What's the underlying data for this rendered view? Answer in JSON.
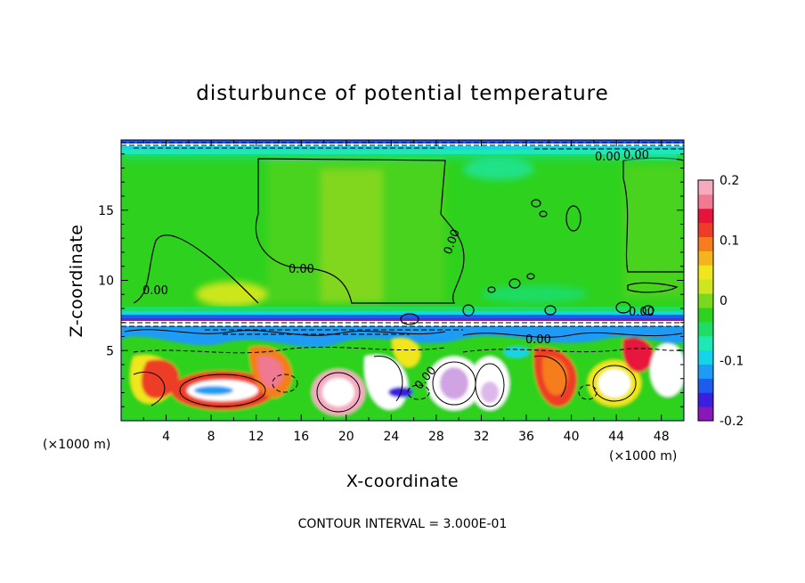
{
  "chart_data": {
    "type": "heatmap",
    "title": "disturbunce of potential temperature",
    "xlabel": "X-coordinate",
    "ylabel": "Z-coordinate",
    "x_unit": "(×1000 m)",
    "x_unit_right": "(×1000 m)",
    "x_ticks": [
      "4",
      "8",
      "12",
      "16",
      "20",
      "24",
      "28",
      "32",
      "36",
      "40",
      "44",
      "48"
    ],
    "y_ticks": [
      "5",
      "10",
      "15"
    ],
    "xlim": [
      0,
      50
    ],
    "ylim": [
      0,
      20
    ],
    "colorbar": {
      "ticks": [
        "0.2",
        "0.1",
        "0",
        "-0.1",
        "-0.2"
      ],
      "range": [
        -0.2,
        0.2
      ],
      "colors": [
        "#8a18b8",
        "#3b1ee0",
        "#1e5cf0",
        "#1e9cf5",
        "#14d4e8",
        "#1ee8b4",
        "#1edc64",
        "#2ed21e",
        "#7ad81e",
        "#cde61e",
        "#f0e61e",
        "#f5b41e",
        "#f57d1e",
        "#ee3c28",
        "#e6143c",
        "#f07890",
        "#f5aac0"
      ]
    },
    "contour_labels": [
      "0.00",
      "0.00",
      "0.00",
      "0.00",
      "0.00",
      "0.00",
      "0.00",
      "0.00"
    ],
    "contour_interval_text": "CONTOUR INTERVAL = 3.000E-01"
  }
}
